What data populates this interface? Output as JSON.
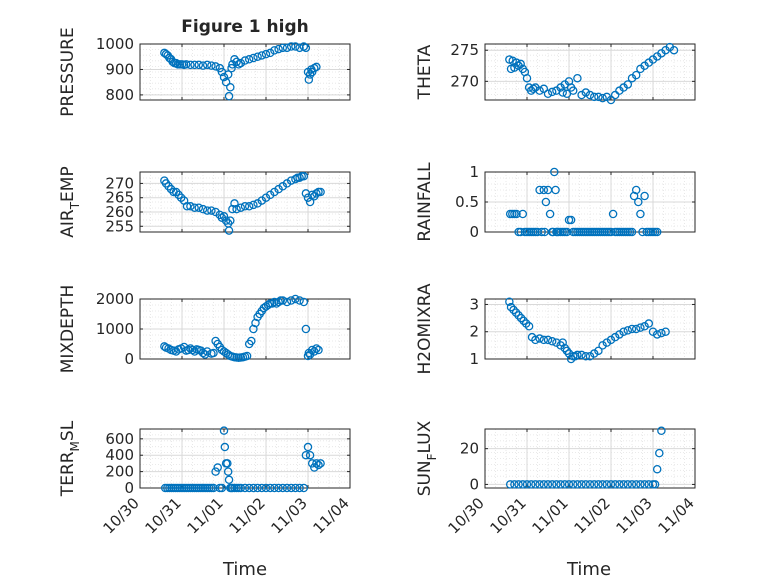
{
  "figure": {
    "title": "Figure 1 high",
    "xlabel": "Time"
  },
  "colors": {
    "marker": "#0072BD",
    "axis": "#262626",
    "grid": "#d9d9d9",
    "background": "#ffffff"
  },
  "chart_data": [
    {
      "type": "scatter",
      "panel": "pressure",
      "ylabel": "PRESSURE",
      "ylim": [
        780,
        1000
      ],
      "yticks": [
        800,
        900,
        1000
      ],
      "xlim": [
        0,
        5
      ],
      "grid": true,
      "x": [
        0.58,
        0.62,
        0.66,
        0.7,
        0.74,
        0.78,
        0.82,
        0.86,
        0.9,
        0.95,
        1.0,
        1.05,
        1.1,
        1.2,
        1.3,
        1.4,
        1.5,
        1.6,
        1.7,
        1.8,
        1.9,
        1.95,
        2.0,
        2.05,
        2.1,
        2.12,
        2.15,
        2.18,
        2.2,
        2.25,
        2.3,
        2.35,
        2.4,
        2.5,
        2.6,
        2.7,
        2.8,
        2.9,
        3.0,
        3.1,
        3.2,
        3.3,
        3.4,
        3.5,
        3.6,
        3.7,
        3.8,
        3.9,
        3.95,
        4.0,
        4.02,
        4.05,
        4.08,
        4.1,
        4.15,
        4.2
      ],
      "y": [
        965,
        960,
        955,
        945,
        940,
        930,
        925,
        925,
        920,
        920,
        920,
        918,
        920,
        918,
        918,
        918,
        915,
        918,
        915,
        912,
        905,
        890,
        870,
        850,
        880,
        795,
        830,
        905,
        920,
        940,
        930,
        920,
        925,
        935,
        940,
        945,
        950,
        955,
        960,
        965,
        975,
        980,
        985,
        985,
        990,
        990,
        985,
        990,
        985,
        890,
        860,
        880,
        900,
        890,
        905,
        910
      ]
    },
    {
      "type": "scatter",
      "panel": "theta",
      "ylabel": "THETA",
      "ylim": [
        267,
        276
      ],
      "yticks": [
        270,
        275
      ],
      "xlim": [
        0,
        5
      ],
      "grid": true,
      "x": [
        0.58,
        0.62,
        0.66,
        0.7,
        0.75,
        0.8,
        0.85,
        0.9,
        0.95,
        1.0,
        1.05,
        1.1,
        1.15,
        1.2,
        1.3,
        1.4,
        1.5,
        1.6,
        1.7,
        1.8,
        1.85,
        1.9,
        1.95,
        2.0,
        2.05,
        2.1,
        2.2,
        2.3,
        2.4,
        2.5,
        2.6,
        2.7,
        2.8,
        2.9,
        3.0,
        3.1,
        3.2,
        3.3,
        3.4,
        3.5,
        3.6,
        3.7,
        3.8,
        3.9,
        4.0,
        4.1,
        4.2,
        4.3,
        4.4,
        4.5
      ],
      "y": [
        273.5,
        272.0,
        273.3,
        272.2,
        273.0,
        272.5,
        272.8,
        272.0,
        271.5,
        270.5,
        269.0,
        268.5,
        268.8,
        269.0,
        268.5,
        268.8,
        268.0,
        268.3,
        268.5,
        269.0,
        268.2,
        269.5,
        268.0,
        270.0,
        269.0,
        268.5,
        270.5,
        267.8,
        268.2,
        267.8,
        267.5,
        267.5,
        267.3,
        267.5,
        267.0,
        267.8,
        268.5,
        269.0,
        269.5,
        270.5,
        271.0,
        272.0,
        272.5,
        273.0,
        273.5,
        274.0,
        274.5,
        275.0,
        275.5,
        275.0
      ]
    },
    {
      "type": "scatter",
      "panel": "air_temp",
      "ylabel": "AIR_TEMP",
      "ylim": [
        253,
        274
      ],
      "yticks": [
        255,
        260,
        265,
        270
      ],
      "xlim": [
        0,
        5
      ],
      "grid": true,
      "x": [
        0.58,
        0.62,
        0.68,
        0.74,
        0.8,
        0.86,
        0.92,
        0.98,
        1.05,
        1.12,
        1.2,
        1.3,
        1.4,
        1.5,
        1.6,
        1.7,
        1.8,
        1.9,
        1.95,
        2.0,
        2.05,
        2.1,
        2.12,
        2.15,
        2.2,
        2.25,
        2.3,
        2.4,
        2.5,
        2.6,
        2.7,
        2.8,
        2.9,
        3.0,
        3.1,
        3.2,
        3.3,
        3.4,
        3.5,
        3.6,
        3.7,
        3.75,
        3.8,
        3.85,
        3.9,
        3.95,
        4.0,
        4.05,
        4.1,
        4.15,
        4.2,
        4.25,
        4.3
      ],
      "y": [
        271,
        270,
        269,
        268,
        267,
        267,
        266,
        265,
        264,
        262,
        262,
        261.5,
        261.5,
        261,
        260.5,
        260.5,
        260,
        259,
        258,
        258.5,
        257,
        256,
        253.5,
        257,
        261,
        263,
        261,
        261.5,
        262,
        262,
        262.5,
        263,
        264,
        265,
        266,
        267,
        268,
        269,
        270,
        271,
        271.5,
        272,
        272,
        272.5,
        272.5,
        266.5,
        265,
        263.5,
        266,
        265.5,
        266.5,
        267,
        267
      ]
    },
    {
      "type": "scatter",
      "panel": "rainfall",
      "ylabel": "RAINFALL",
      "ylim": [
        0,
        1
      ],
      "yticks": [
        0,
        0.5,
        1
      ],
      "xlim": [
        0,
        5
      ],
      "grid": true,
      "x": [
        0.6,
        0.65,
        0.7,
        0.75,
        0.8,
        0.85,
        0.9,
        0.95,
        1.0,
        1.05,
        1.1,
        1.15,
        1.2,
        1.25,
        1.3,
        1.35,
        1.4,
        1.42,
        1.45,
        1.5,
        1.55,
        1.6,
        1.62,
        1.65,
        1.68,
        1.7,
        1.72,
        1.75,
        1.8,
        1.85,
        1.9,
        1.95,
        2.0,
        2.05,
        2.1,
        2.15,
        2.2,
        2.25,
        2.3,
        2.35,
        2.4,
        2.45,
        2.5,
        2.55,
        2.6,
        2.65,
        2.7,
        2.75,
        2.8,
        2.85,
        2.9,
        2.95,
        3.0,
        3.05,
        3.1,
        3.15,
        3.2,
        3.25,
        3.3,
        3.35,
        3.4,
        3.45,
        3.5,
        3.55,
        3.6,
        3.65,
        3.7,
        3.75,
        3.8,
        3.85,
        3.9,
        3.95,
        4.0,
        4.05,
        4.1
      ],
      "y": [
        0.3,
        0.3,
        0.3,
        0.3,
        0,
        0,
        0.3,
        0,
        0,
        0,
        0,
        0,
        0,
        0,
        0.7,
        0,
        0.7,
        0,
        0.5,
        0.7,
        0.3,
        0,
        0,
        1.0,
        0.7,
        0,
        0,
        0,
        0,
        0,
        0,
        0,
        0.2,
        0.2,
        0,
        0,
        0,
        0,
        0,
        0,
        0,
        0,
        0,
        0,
        0,
        0,
        0,
        0,
        0,
        0,
        0,
        0,
        0,
        0.3,
        0,
        0,
        0,
        0,
        0,
        0,
        0,
        0,
        0,
        0.6,
        0.7,
        0.5,
        0.3,
        0,
        0.6,
        0,
        0,
        0,
        0,
        0,
        0
      ]
    },
    {
      "type": "scatter",
      "panel": "mixdepth",
      "ylabel": "MIXDEPTH",
      "ylim": [
        0,
        2000
      ],
      "yticks": [
        0,
        1000,
        2000
      ],
      "xlim": [
        0,
        5
      ],
      "grid": true,
      "x": [
        0.58,
        0.62,
        0.68,
        0.74,
        0.8,
        0.86,
        0.92,
        0.98,
        1.05,
        1.1,
        1.15,
        1.2,
        1.25,
        1.3,
        1.35,
        1.4,
        1.45,
        1.5,
        1.55,
        1.6,
        1.7,
        1.75,
        1.8,
        1.85,
        1.9,
        1.95,
        2.0,
        2.05,
        2.1,
        2.15,
        2.2,
        2.25,
        2.3,
        2.35,
        2.4,
        2.45,
        2.5,
        2.55,
        2.6,
        2.65,
        2.7,
        2.75,
        2.8,
        2.85,
        2.9,
        2.95,
        3.0,
        3.05,
        3.1,
        3.15,
        3.2,
        3.25,
        3.3,
        3.35,
        3.4,
        3.5,
        3.6,
        3.7,
        3.8,
        3.9,
        3.95,
        4.0,
        4.02,
        4.05,
        4.1,
        4.15,
        4.2,
        4.25
      ],
      "y": [
        420,
        380,
        350,
        300,
        280,
        250,
        320,
        350,
        400,
        280,
        300,
        350,
        300,
        250,
        320,
        300,
        280,
        200,
        150,
        250,
        180,
        200,
        600,
        500,
        400,
        300,
        250,
        200,
        150,
        100,
        80,
        60,
        50,
        40,
        50,
        60,
        80,
        100,
        500,
        600,
        1000,
        1200,
        1400,
        1500,
        1600,
        1700,
        1750,
        1800,
        1850,
        1850,
        1900,
        1850,
        1900,
        1950,
        1950,
        1900,
        1950,
        2000,
        1950,
        1900,
        1000,
        100,
        200,
        150,
        300,
        250,
        350,
        300
      ]
    },
    {
      "type": "scatter",
      "panel": "h2omixra",
      "ylabel": "H2OMIXRA",
      "ylim": [
        1,
        3.2
      ],
      "yticks": [
        1,
        2,
        3
      ],
      "xlim": [
        0,
        5
      ],
      "grid": true,
      "x": [
        0.58,
        0.62,
        0.68,
        0.74,
        0.8,
        0.86,
        0.92,
        0.98,
        1.05,
        1.12,
        1.2,
        1.3,
        1.4,
        1.5,
        1.6,
        1.7,
        1.8,
        1.85,
        1.9,
        1.95,
        2.0,
        2.05,
        2.1,
        2.15,
        2.2,
        2.3,
        2.4,
        2.5,
        2.6,
        2.7,
        2.8,
        2.9,
        3.0,
        3.1,
        3.2,
        3.3,
        3.4,
        3.5,
        3.6,
        3.7,
        3.8,
        3.9,
        4.0,
        4.1,
        4.2,
        4.3
      ],
      "y": [
        3.1,
        2.9,
        2.8,
        2.7,
        2.6,
        2.5,
        2.4,
        2.3,
        2.2,
        1.8,
        1.7,
        1.75,
        1.7,
        1.7,
        1.65,
        1.6,
        1.5,
        1.6,
        1.4,
        1.3,
        1.2,
        1.0,
        1.1,
        1.1,
        1.15,
        1.15,
        1.1,
        1.1,
        1.2,
        1.3,
        1.5,
        1.6,
        1.7,
        1.8,
        1.9,
        2.0,
        2.05,
        2.1,
        2.1,
        2.15,
        2.2,
        2.3,
        2.0,
        1.9,
        1.95,
        2.0
      ]
    },
    {
      "type": "scatter",
      "panel": "terr_msl",
      "ylabel": "TERR_MSL",
      "ylim": [
        0,
        720
      ],
      "yticks": [
        0,
        200,
        400,
        600
      ],
      "xlim": [
        0,
        5
      ],
      "grid": true,
      "x": [
        0.6,
        0.65,
        0.7,
        0.75,
        0.8,
        0.85,
        0.9,
        0.95,
        1.0,
        1.05,
        1.1,
        1.15,
        1.2,
        1.25,
        1.3,
        1.35,
        1.4,
        1.45,
        1.5,
        1.55,
        1.6,
        1.65,
        1.7,
        1.75,
        1.8,
        1.85,
        1.9,
        1.95,
        2.0,
        2.02,
        2.05,
        2.08,
        2.1,
        2.12,
        2.15,
        2.18,
        2.2,
        2.25,
        2.3,
        2.35,
        2.4,
        2.5,
        2.6,
        2.7,
        2.8,
        2.9,
        3.0,
        3.1,
        3.2,
        3.3,
        3.4,
        3.5,
        3.6,
        3.7,
        3.8,
        3.9,
        3.95,
        4.0,
        4.05,
        4.1,
        4.15,
        4.2,
        4.25,
        4.3
      ],
      "y": [
        0,
        0,
        0,
        0,
        0,
        0,
        0,
        0,
        0,
        0,
        0,
        0,
        0,
        0,
        0,
        0,
        0,
        0,
        0,
        0,
        0,
        0,
        0,
        0,
        200,
        250,
        0,
        0,
        700,
        500,
        300,
        300,
        200,
        100,
        0,
        0,
        0,
        0,
        0,
        0,
        0,
        0,
        0,
        0,
        0,
        0,
        0,
        0,
        0,
        0,
        0,
        0,
        0,
        0,
        0,
        0,
        400,
        500,
        400,
        300,
        250,
        300,
        280,
        300
      ]
    },
    {
      "type": "scatter",
      "panel": "sun_flux",
      "ylabel": "SUN_FLUX",
      "ylim": [
        -2,
        31
      ],
      "yticks": [
        0,
        20
      ],
      "xlim": [
        0,
        5
      ],
      "grid": true,
      "x": [
        0.6,
        0.7,
        0.8,
        0.9,
        1.0,
        1.1,
        1.2,
        1.3,
        1.4,
        1.5,
        1.6,
        1.7,
        1.8,
        1.9,
        2.0,
        2.1,
        2.2,
        2.3,
        2.4,
        2.5,
        2.6,
        2.7,
        2.8,
        2.9,
        3.0,
        3.1,
        3.2,
        3.3,
        3.4,
        3.5,
        3.6,
        3.7,
        3.8,
        3.9,
        4.0,
        4.05,
        4.1,
        4.15,
        4.2
      ],
      "y": [
        0,
        0,
        0,
        0,
        0,
        0,
        0,
        0,
        0,
        0,
        0,
        0,
        0,
        0,
        0,
        0,
        0,
        0,
        0,
        0,
        0,
        0,
        0,
        0,
        0,
        0,
        0,
        0,
        0,
        0,
        0,
        0,
        0,
        0,
        0,
        0,
        8.5,
        17.5,
        30
      ]
    }
  ],
  "xticks": {
    "values": [
      0,
      1,
      2,
      3,
      4,
      5
    ],
    "labels": [
      "10/30",
      "10/31",
      "11/01",
      "11/02",
      "11/03",
      "11/04"
    ]
  },
  "ylabel_parts": {
    "air_temp": {
      "main": "AIR",
      "sub": "T",
      "rest": "EMP"
    },
    "terr_msl": {
      "main": "TERR",
      "sub": "M",
      "rest": "SL"
    },
    "sun_flux": {
      "main": "SUN",
      "sub": "F",
      "rest": "LUX"
    }
  }
}
